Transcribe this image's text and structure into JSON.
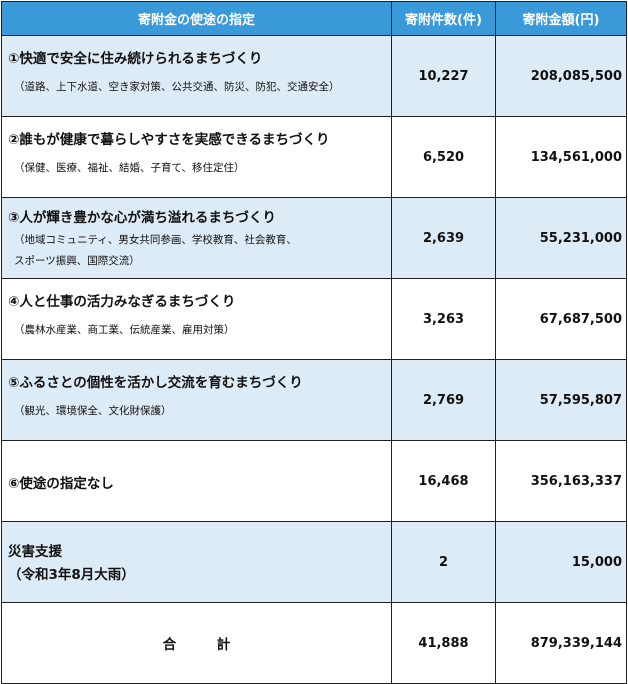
{
  "headers": {
    "purpose": "寄附金の使途の指定",
    "count": "寄附件数(件)",
    "amount": "寄附金額(円)"
  },
  "rows": [
    {
      "title": "①快適で安全に住み続けられるまちづくり",
      "sub": "（道路、上下水道、空き家対策、公共交通、防災、防犯、交通安全）",
      "count": "10,227",
      "amount": "208,085,500"
    },
    {
      "title": "②誰もが健康で暮らしやすさを実感できるまちづくり",
      "sub": "（保健、医療、福祉、結婚、子育て、移住定住）",
      "count": "6,520",
      "amount": "134,561,000"
    },
    {
      "title": "③人が輝き豊かな心が満ち溢れるまちづくり",
      "sub1": "（地域コミュニティ、男女共同参画、学校教育、社会教育、",
      "sub2": "スポーツ振興、国際交流）",
      "count": "2,639",
      "amount": "55,231,000"
    },
    {
      "title": "④人と仕事の活力みなぎるまちづくり",
      "sub": "（農林水産業、商工業、伝統産業、雇用対策）",
      "count": "3,263",
      "amount": "67,687,500"
    },
    {
      "title": "⑤ふるさとの個性を活かし交流を育むまちづくり",
      "sub": "（観光、環境保全、文化財保護）",
      "count": "2,769",
      "amount": "57,595,807"
    },
    {
      "title": "⑥使途の指定なし",
      "count": "16,468",
      "amount": "356,163,337"
    },
    {
      "title1": "災害支援",
      "title2": "（令和3年8月大雨）",
      "count": "2",
      "amount": "15,000"
    }
  ],
  "total": {
    "label": "合　　　計",
    "count": "41,888",
    "amount": "879,339,144"
  },
  "colors": {
    "header_bg": "#3a9ad9",
    "shade_bg": "#ddebf7",
    "border": "#222222"
  }
}
